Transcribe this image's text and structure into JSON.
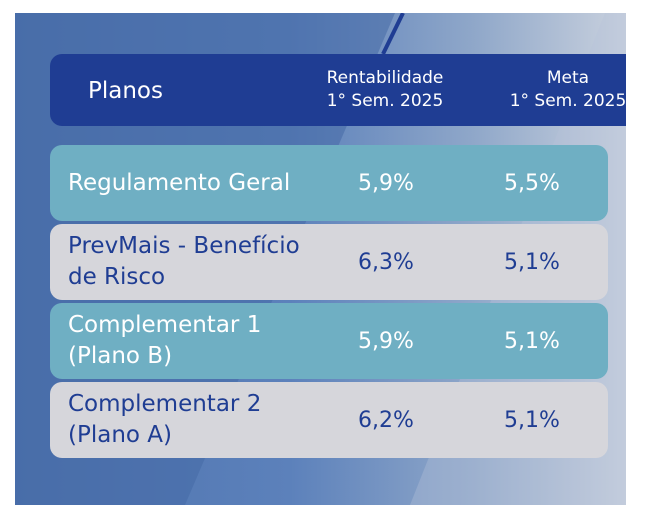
{
  "header": {
    "plans_label": "Planos",
    "col_rent_line1": "Rentabilidade",
    "col_rent_line2": "1° Sem. 2025",
    "col_meta_line1": "Meta",
    "col_meta_line2": "1° Sem. 2025"
  },
  "rows": [
    {
      "name_line1": "Regulamento Geral",
      "name_line2": "",
      "rentabilidade": "5,9%",
      "meta": "5,5%"
    },
    {
      "name_line1": "PrevMais - Benefício",
      "name_line2": "de Risco",
      "rentabilidade": "6,3%",
      "meta": "5,1%"
    },
    {
      "name_line1": "Complementar 1",
      "name_line2": "(Plano B)",
      "rentabilidade": "5,9%",
      "meta": "5,1%"
    },
    {
      "name_line1": "Complementar 2",
      "name_line2": "(Plano A)",
      "rentabilidade": "6,2%",
      "meta": "5,1%"
    }
  ],
  "colors": {
    "header_bg": "#1f3d93",
    "row_teal": "#6fafc3",
    "row_grey": "#d6d6db",
    "text_dark": "#1f3d93"
  }
}
